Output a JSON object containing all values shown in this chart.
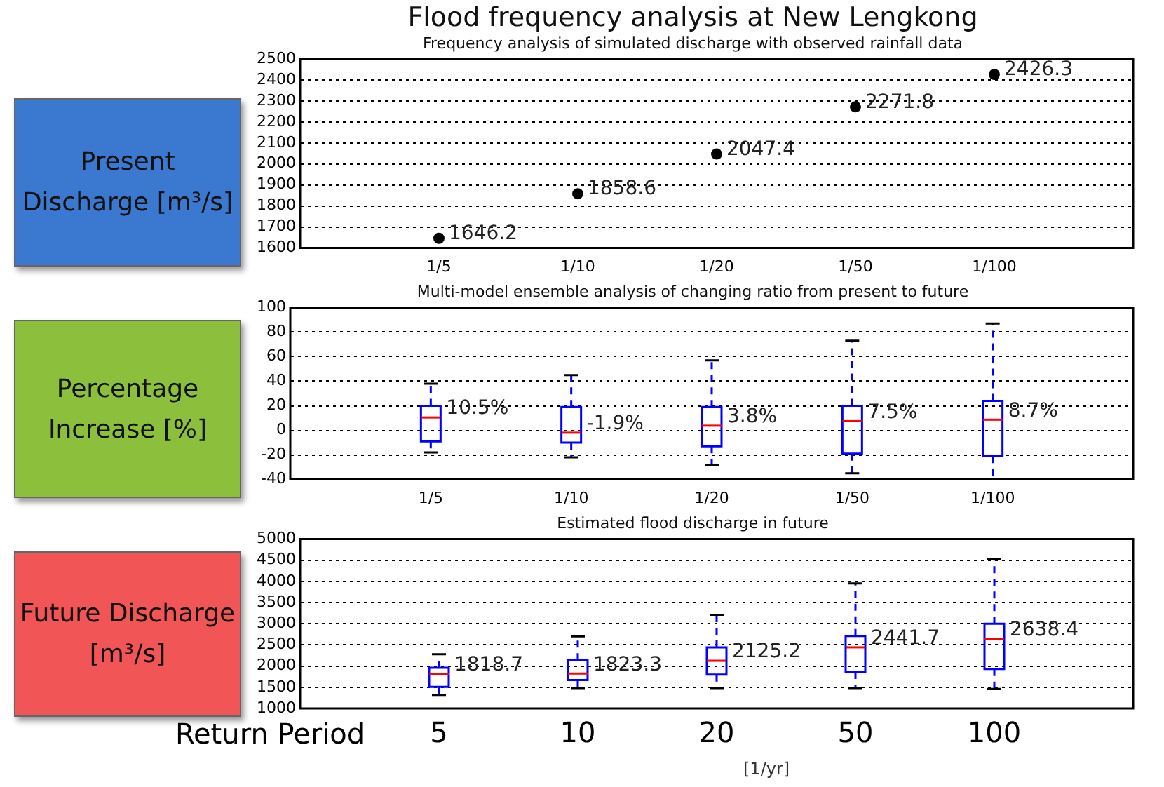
{
  "chart_data": [
    {
      "type": "scatter",
      "title": "Flood frequency analysis at New Lengkong",
      "subtitle": "Frequency analysis of simulated discharge with observed rainfall data",
      "ylabel": "Present Discharge [m³/s]",
      "categories": [
        "1/5",
        "1/10",
        "1/20",
        "1/50",
        "1/100"
      ],
      "series": [
        {
          "color": "#000000",
          "values": [
            1646.2,
            1858.6,
            2047.4,
            2271.8,
            2426.3
          ]
        }
      ],
      "data_labels": true,
      "ylim": [
        1600,
        2500
      ],
      "yticks": [
        1600,
        1700,
        1800,
        1900,
        2000,
        2100,
        2200,
        2300,
        2400,
        2500
      ],
      "grid": "y",
      "marker": "circle",
      "legend": false
    },
    {
      "type": "box",
      "title": "Multi-model ensemble analysis of changing ratio from present to future",
      "ylabel": "Percentage Increase [%]",
      "categories": [
        "1/5",
        "1/10",
        "1/20",
        "1/50",
        "1/100"
      ],
      "boxes": [
        {
          "low": -18,
          "q1": -9,
          "median": 10.5,
          "q3": 20,
          "high": 38
        },
        {
          "low": -22,
          "q1": -10,
          "median": -1.9,
          "q3": 19,
          "high": 45
        },
        {
          "low": -28,
          "q1": -13,
          "median": 3.8,
          "q3": 19,
          "high": 57
        },
        {
          "low": -35,
          "q1": -19,
          "median": 7.5,
          "q3": 20,
          "high": 73
        },
        {
          "low": -40,
          "q1": -21,
          "median": 8.7,
          "q3": 24,
          "high": 87
        }
      ],
      "value_labels": [
        "10.5%",
        "-1.9%",
        "3.8%",
        "7.5%",
        "8.7%"
      ],
      "ylim": [
        -40,
        100
      ],
      "yticks": [
        -40,
        -20,
        0,
        20,
        40,
        60,
        80,
        100
      ],
      "grid": "y",
      "legend": false
    },
    {
      "type": "box",
      "title": "Estimated flood discharge in future",
      "ylabel": "Future Discharge [m³/s]",
      "xlabel": "Return Period",
      "categories": [
        "5",
        "10",
        "20",
        "50",
        "100"
      ],
      "boxes": [
        {
          "low": 1320,
          "q1": 1510,
          "median": 1818.7,
          "q3": 1960,
          "high": 2280
        },
        {
          "low": 1480,
          "q1": 1670,
          "median": 1823.3,
          "q3": 2140,
          "high": 2700
        },
        {
          "low": 1480,
          "q1": 1800,
          "median": 2125.2,
          "q3": 2440,
          "high": 3210
        },
        {
          "low": 1480,
          "q1": 1860,
          "median": 2441.7,
          "q3": 2710,
          "high": 3950
        },
        {
          "low": 1460,
          "q1": 1930,
          "median": 2638.4,
          "q3": 3000,
          "high": 4520
        }
      ],
      "value_labels": [
        "1818.7",
        "1823.3",
        "2125.2",
        "2441.7",
        "2638.4"
      ],
      "ylim": [
        1000,
        5000
      ],
      "yticks": [
        1000,
        1500,
        2000,
        2500,
        3000,
        3500,
        4000,
        4500,
        5000
      ],
      "grid": "y",
      "legend": false,
      "annotations": [
        "[1/yr]"
      ]
    }
  ]
}
